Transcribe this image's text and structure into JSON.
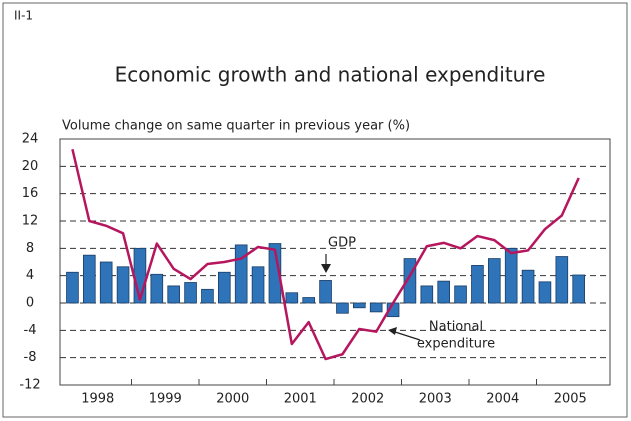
{
  "chart_data": {
    "type": "bar_line",
    "label": "II-1",
    "title": "Economic growth and national expenditure",
    "y_axis_label": "Volume change on same quarter in previous year (%)",
    "years": [
      "1998",
      "1999",
      "2000",
      "2001",
      "2002",
      "2003",
      "2004",
      "2005"
    ],
    "ylim": [
      -12,
      24
    ],
    "yticks": [
      -12,
      -8,
      -4,
      0,
      4,
      8,
      12,
      16,
      20,
      24
    ],
    "grid": true,
    "series": [
      {
        "name": "GDP",
        "type": "bar",
        "color": "#2f74b8",
        "values": [
          4.5,
          7,
          6,
          5.3,
          8,
          4.2,
          2.5,
          3,
          2,
          4.5,
          8.5,
          5.3,
          8.7,
          1.5,
          0.8,
          3.3,
          -1.5,
          -0.7,
          -1.3,
          -2,
          6.5,
          2.5,
          3.2,
          2.5,
          5.5,
          6.5,
          8,
          4.8,
          3.1,
          6.8,
          4.1
        ]
      },
      {
        "name": [
          "National",
          "expenditure"
        ],
        "type": "line",
        "color": "#b5165e",
        "values": [
          22.5,
          12,
          11.3,
          10.2,
          0.5,
          8.7,
          5,
          3.5,
          5.7,
          6,
          6.5,
          8.2,
          7.8,
          -6,
          -2.8,
          -8.2,
          -7.5,
          -3.8,
          -4.2,
          0,
          4,
          8.3,
          8.8,
          8,
          9.8,
          9.2,
          7.3,
          7.7,
          10.8,
          12.8,
          18.3
        ]
      }
    ]
  }
}
